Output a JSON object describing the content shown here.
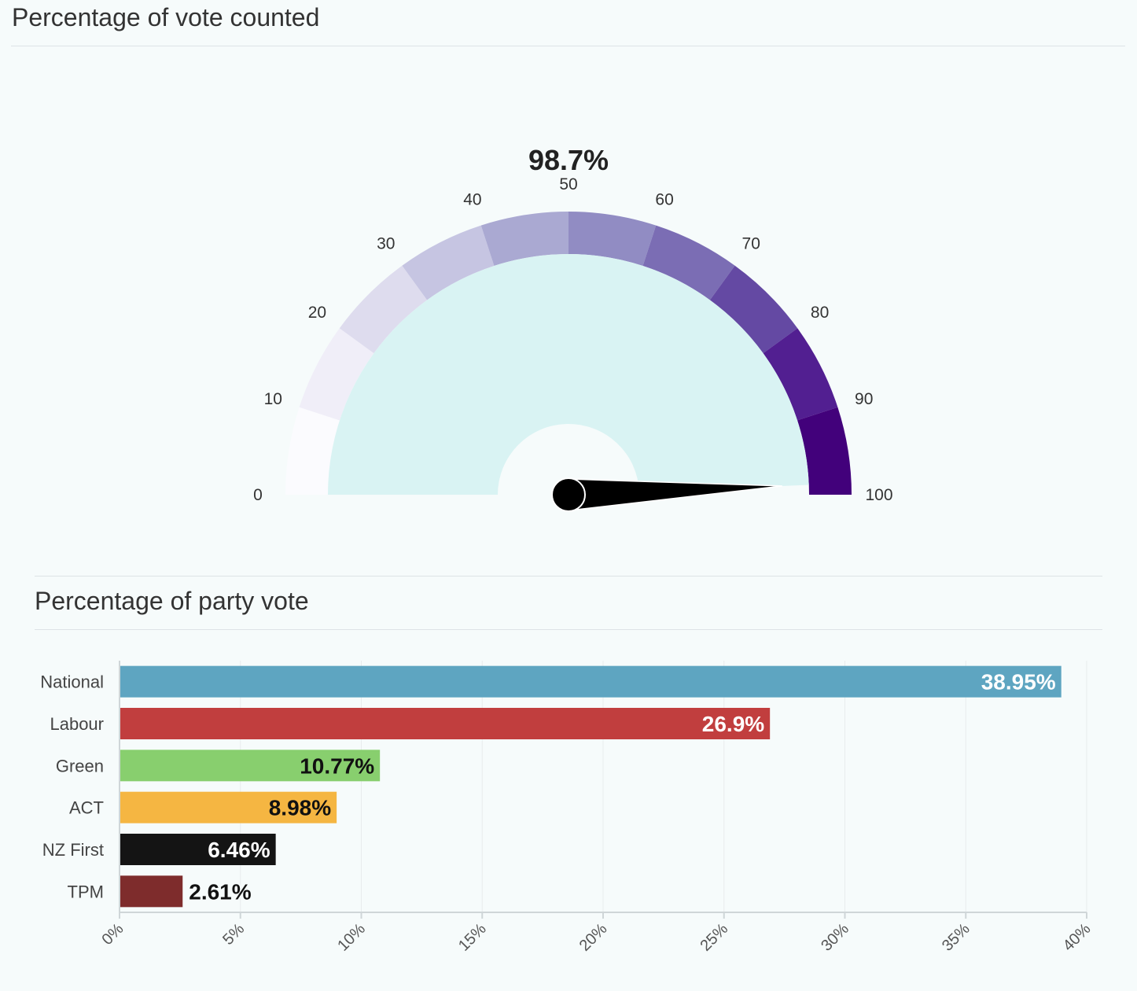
{
  "gauge_section": {
    "title": "Percentage of vote counted"
  },
  "bar_section": {
    "title": "Percentage of party vote"
  },
  "chart_data": [
    {
      "type": "gauge",
      "title": "Percentage of vote counted",
      "value": 98.7,
      "value_label": "98.7%",
      "min": 0,
      "max": 100,
      "ticks": [
        0,
        10,
        20,
        30,
        40,
        50,
        60,
        70,
        80,
        90,
        100
      ],
      "band_colors": [
        "#fbfbfe",
        "#f0eef8",
        "#dedcee",
        "#c6c5e2",
        "#aaa9d2",
        "#918cc3",
        "#7b6db4",
        "#6449a3",
        "#521f91",
        "#42017b"
      ],
      "fill_color": "#d9f3f3",
      "needle_color": "#000000"
    },
    {
      "type": "bar",
      "orientation": "horizontal",
      "title": "Percentage of party vote",
      "categories": [
        "National",
        "Labour",
        "Green",
        "ACT",
        "NZ First",
        "TPM"
      ],
      "values": [
        38.95,
        26.9,
        10.77,
        8.98,
        6.46,
        2.61
      ],
      "value_labels": [
        "38.95%",
        "26.9%",
        "10.77%",
        "8.98%",
        "6.46%",
        "2.61%"
      ],
      "colors": [
        "#5ea5c1",
        "#c13e3e",
        "#88cf6e",
        "#f5b642",
        "#141414",
        "#7e2c2c"
      ],
      "label_colors": [
        "#ffffff",
        "#ffffff",
        "#111111",
        "#111111",
        "#ffffff",
        "#111111"
      ],
      "xlim": [
        0,
        40
      ],
      "x_ticks": [
        0,
        5,
        10,
        15,
        20,
        25,
        30,
        35,
        40
      ],
      "x_tick_labels": [
        "0%",
        "5%",
        "10%",
        "15%",
        "20%",
        "25%",
        "30%",
        "35%",
        "40%"
      ]
    }
  ]
}
